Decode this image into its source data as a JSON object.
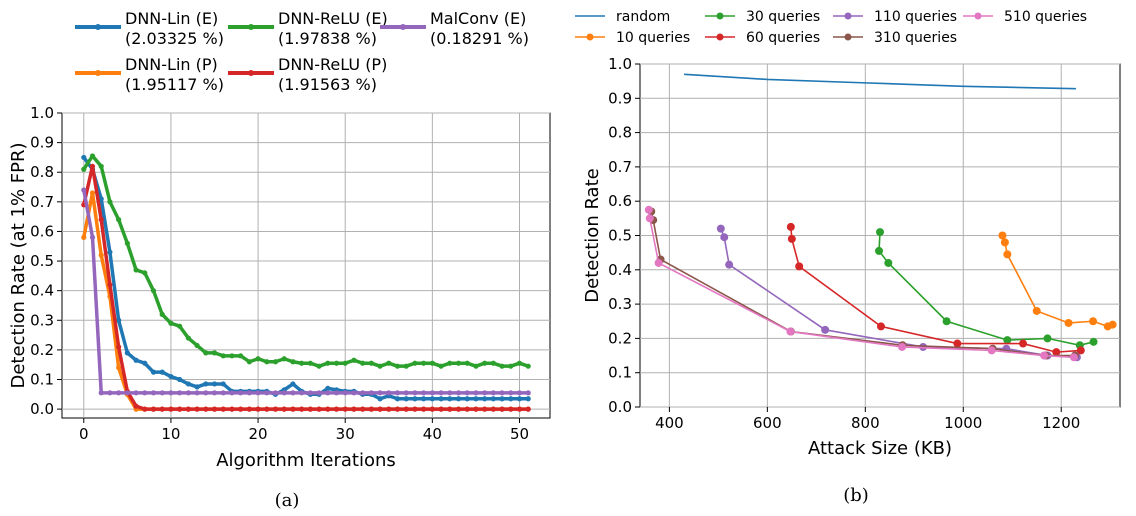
{
  "chart_data": [
    {
      "type": "line",
      "caption": "(a)",
      "xlabel": "Algorithm Iterations",
      "ylabel": "Detection Rate (at 1% FPR)",
      "xlim": [
        -2.5,
        53.5
      ],
      "ylim": [
        -0.03,
        1.0
      ],
      "xticks": [
        0,
        10,
        20,
        30,
        40,
        50
      ],
      "yticks": [
        0.0,
        0.1,
        0.2,
        0.3,
        0.4,
        0.5,
        0.6,
        0.7,
        0.8,
        0.9,
        1.0
      ],
      "grid": true,
      "legend_position": "top",
      "series": [
        {
          "name": "DNN-Lin (E)",
          "sub": "(2.03325 %)",
          "color": "#1f77b4",
          "x": [
            0,
            1,
            2,
            3,
            4,
            5,
            6,
            7,
            8,
            9,
            10,
            11,
            12,
            13,
            14,
            15,
            16,
            17,
            18,
            19,
            20,
            21,
            22,
            23,
            24,
            25,
            26,
            27,
            28,
            29,
            30,
            31,
            32,
            33,
            34,
            35,
            36,
            37,
            38,
            39,
            40,
            41,
            42,
            43,
            44,
            45,
            46,
            47,
            48,
            49,
            50,
            51
          ],
          "y": [
            0.85,
            0.81,
            0.71,
            0.53,
            0.3,
            0.19,
            0.165,
            0.155,
            0.125,
            0.125,
            0.11,
            0.1,
            0.085,
            0.075,
            0.085,
            0.085,
            0.085,
            0.06,
            0.06,
            0.06,
            0.06,
            0.06,
            0.05,
            0.065,
            0.085,
            0.06,
            0.05,
            0.05,
            0.07,
            0.065,
            0.06,
            0.06,
            0.05,
            0.05,
            0.035,
            0.045,
            0.035,
            0.035,
            0.035,
            0.035,
            0.035,
            0.035,
            0.035,
            0.035,
            0.035,
            0.035,
            0.035,
            0.035,
            0.035,
            0.035,
            0.035,
            0.035
          ]
        },
        {
          "name": "DNN-Lin (P)",
          "sub": "(1.95117 %)",
          "color": "#ff7f0e",
          "x": [
            0,
            1,
            2,
            3,
            4,
            5,
            6,
            7,
            8,
            9,
            10,
            11,
            12,
            13,
            14,
            15,
            16,
            17,
            18,
            19,
            20,
            21,
            22,
            23,
            24,
            25,
            26,
            27,
            28,
            29,
            30,
            31,
            32,
            33,
            34,
            35,
            36,
            37,
            38,
            39,
            40,
            41,
            42,
            43,
            44,
            45,
            46,
            47,
            48,
            49,
            50,
            51
          ],
          "y": [
            0.58,
            0.73,
            0.52,
            0.38,
            0.14,
            0.05,
            0.0,
            0,
            0,
            0,
            0,
            0,
            0,
            0,
            0,
            0,
            0,
            0,
            0,
            0,
            0,
            0,
            0,
            0,
            0,
            0,
            0,
            0,
            0,
            0,
            0,
            0,
            0,
            0,
            0,
            0,
            0,
            0,
            0,
            0,
            0,
            0,
            0,
            0,
            0,
            0,
            0,
            0,
            0,
            0,
            0,
            0
          ]
        },
        {
          "name": "DNN-ReLU (E)",
          "sub": "(1.97838 %)",
          "color": "#2ca02c",
          "x": [
            0,
            1,
            2,
            3,
            4,
            5,
            6,
            7,
            8,
            9,
            10,
            11,
            12,
            13,
            14,
            15,
            16,
            17,
            18,
            19,
            20,
            21,
            22,
            23,
            24,
            25,
            26,
            27,
            28,
            29,
            30,
            31,
            32,
            33,
            34,
            35,
            36,
            37,
            38,
            39,
            40,
            41,
            42,
            43,
            44,
            45,
            46,
            47,
            48,
            49,
            50,
            51
          ],
          "y": [
            0.81,
            0.855,
            0.82,
            0.7,
            0.64,
            0.56,
            0.47,
            0.46,
            0.4,
            0.32,
            0.29,
            0.28,
            0.24,
            0.215,
            0.19,
            0.19,
            0.18,
            0.18,
            0.18,
            0.16,
            0.17,
            0.16,
            0.16,
            0.17,
            0.16,
            0.155,
            0.155,
            0.145,
            0.155,
            0.155,
            0.155,
            0.165,
            0.155,
            0.155,
            0.145,
            0.155,
            0.145,
            0.145,
            0.155,
            0.155,
            0.155,
            0.145,
            0.155,
            0.155,
            0.155,
            0.145,
            0.155,
            0.155,
            0.145,
            0.145,
            0.155,
            0.145
          ]
        },
        {
          "name": "DNN-ReLU (P)",
          "sub": "(1.91563 %)",
          "color": "#d62728",
          "x": [
            0,
            1,
            2,
            3,
            4,
            5,
            6,
            7,
            8,
            9,
            10,
            11,
            12,
            13,
            14,
            15,
            16,
            17,
            18,
            19,
            20,
            21,
            22,
            23,
            24,
            25,
            26,
            27,
            28,
            29,
            30,
            31,
            32,
            33,
            34,
            35,
            36,
            37,
            38,
            39,
            40,
            41,
            42,
            43,
            44,
            45,
            46,
            47,
            48,
            49,
            50,
            51
          ],
          "y": [
            0.69,
            0.82,
            0.64,
            0.42,
            0.21,
            0.06,
            0.01,
            0,
            0,
            0,
            0,
            0,
            0,
            0,
            0,
            0,
            0,
            0,
            0,
            0,
            0,
            0,
            0,
            0,
            0,
            0,
            0,
            0,
            0,
            0,
            0,
            0,
            0,
            0,
            0,
            0,
            0,
            0,
            0,
            0,
            0,
            0,
            0,
            0,
            0,
            0,
            0,
            0,
            0,
            0,
            0,
            0
          ]
        },
        {
          "name": "MalConv (E)",
          "sub": "(0.18291 %)",
          "color": "#9467bd",
          "x": [
            0,
            1,
            2,
            3,
            4,
            5,
            6,
            7,
            8,
            9,
            10,
            11,
            12,
            13,
            14,
            15,
            16,
            17,
            18,
            19,
            20,
            21,
            22,
            23,
            24,
            25,
            26,
            27,
            28,
            29,
            30,
            31,
            32,
            33,
            34,
            35,
            36,
            37,
            38,
            39,
            40,
            41,
            42,
            43,
            44,
            45,
            46,
            47,
            48,
            49,
            50,
            51
          ],
          "y": [
            0.74,
            0.58,
            0.055,
            0.055,
            0.055,
            0.055,
            0.055,
            0.055,
            0.055,
            0.055,
            0.055,
            0.055,
            0.055,
            0.055,
            0.055,
            0.055,
            0.055,
            0.055,
            0.055,
            0.055,
            0.055,
            0.055,
            0.055,
            0.055,
            0.055,
            0.055,
            0.055,
            0.055,
            0.055,
            0.055,
            0.055,
            0.055,
            0.055,
            0.055,
            0.055,
            0.055,
            0.055,
            0.055,
            0.055,
            0.055,
            0.055,
            0.055,
            0.055,
            0.055,
            0.055,
            0.055,
            0.055,
            0.055,
            0.055,
            0.055,
            0.055,
            0.055
          ]
        }
      ]
    },
    {
      "type": "line",
      "caption": "(b)",
      "xlabel": "Attack Size (KB)",
      "ylabel": "Detection Rate",
      "xlim": [
        340,
        1320
      ],
      "ylim": [
        0.0,
        1.0
      ],
      "xticks": [
        400,
        600,
        800,
        1000,
        1200
      ],
      "yticks": [
        0.0,
        0.1,
        0.2,
        0.3,
        0.4,
        0.5,
        0.6,
        0.7,
        0.8,
        0.9,
        1.0
      ],
      "grid": true,
      "legend_position": "top",
      "series": [
        {
          "name": "random",
          "color": "#1f77b4",
          "markers": false,
          "x": [
            430,
            600,
            800,
            1000,
            1100,
            1230
          ],
          "y": [
            0.97,
            0.955,
            0.945,
            0.935,
            0.932,
            0.928
          ]
        },
        {
          "name": "10 queries",
          "color": "#ff7f0e",
          "markers": true,
          "x": [
            1080,
            1085,
            1090,
            1150,
            1215,
            1265,
            1295,
            1305
          ],
          "y": [
            0.5,
            0.48,
            0.445,
            0.28,
            0.245,
            0.25,
            0.235,
            0.24
          ]
        },
        {
          "name": "30 queries",
          "color": "#2ca02c",
          "markers": true,
          "x": [
            830,
            828,
            847,
            966,
            1090,
            1172,
            1238,
            1266
          ],
          "y": [
            0.51,
            0.455,
            0.42,
            0.25,
            0.195,
            0.2,
            0.18,
            0.19
          ]
        },
        {
          "name": "60 queries",
          "color": "#d62728",
          "markers": true,
          "x": [
            648,
            650,
            665,
            832,
            988,
            1122,
            1190,
            1240
          ],
          "y": [
            0.525,
            0.49,
            0.41,
            0.235,
            0.185,
            0.185,
            0.16,
            0.165
          ]
        },
        {
          "name": "110 queries",
          "color": "#9467bd",
          "markers": true,
          "x": [
            505,
            512,
            522,
            718,
            918,
            1088,
            1172,
            1232
          ],
          "y": [
            0.52,
            0.495,
            0.415,
            0.225,
            0.175,
            0.17,
            0.15,
            0.145
          ]
        },
        {
          "name": "310 queries",
          "color": "#8c564b",
          "markers": true,
          "x": [
            363,
            367,
            382,
            648,
            876,
            1060,
            1168,
            1228
          ],
          "y": [
            0.57,
            0.545,
            0.43,
            0.22,
            0.18,
            0.17,
            0.15,
            0.15
          ]
        },
        {
          "name": "510 queries",
          "color": "#e377c2",
          "markers": true,
          "x": [
            358,
            360,
            378,
            647,
            875,
            1058,
            1165,
            1226
          ],
          "y": [
            0.575,
            0.55,
            0.42,
            0.22,
            0.175,
            0.165,
            0.15,
            0.145
          ]
        }
      ]
    }
  ]
}
